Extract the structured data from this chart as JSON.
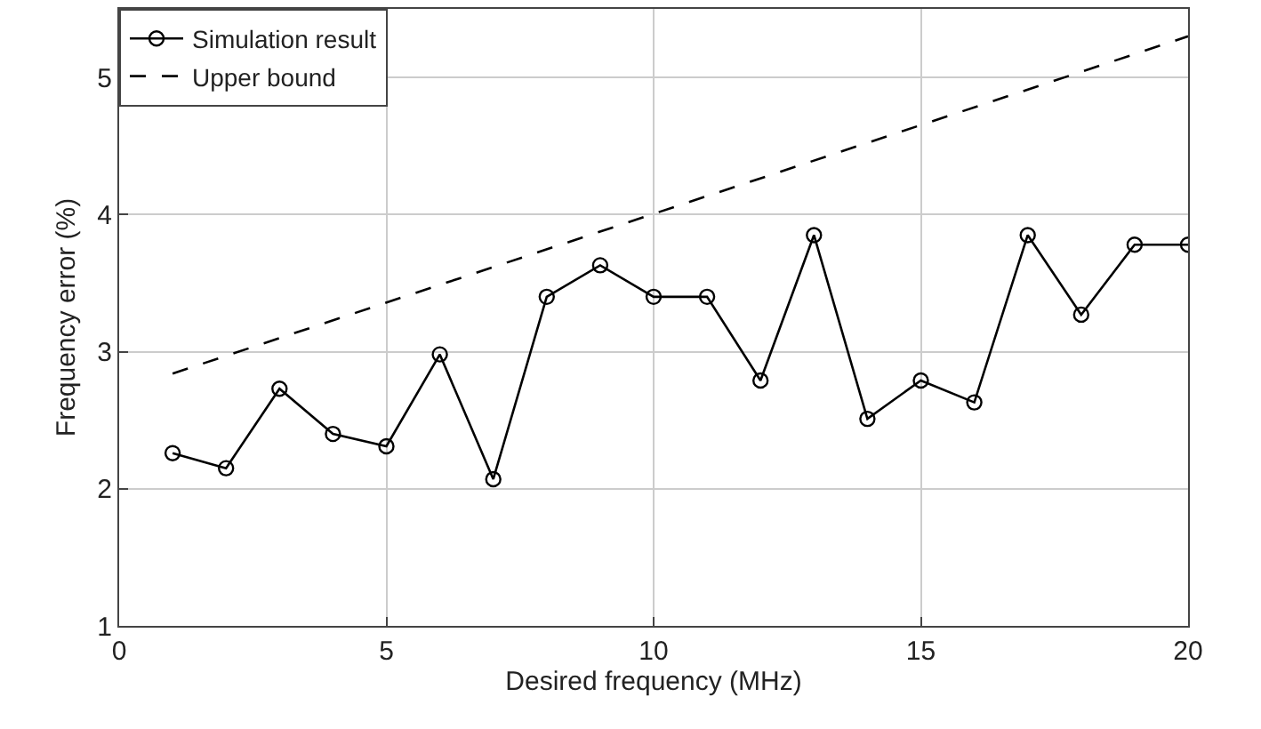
{
  "chart_data": {
    "type": "line",
    "xlabel": "Desired frequency (MHz)",
    "ylabel": "Frequency error (%)",
    "x": [
      1,
      2,
      3,
      4,
      5,
      6,
      7,
      8,
      9,
      10,
      11,
      12,
      13,
      14,
      15,
      16,
      17,
      18,
      19,
      20
    ],
    "series": [
      {
        "name": "Simulation result",
        "color": "#000000",
        "marker": "circle",
        "line_style": "solid",
        "values": [
          2.26,
          2.15,
          2.73,
          2.4,
          2.31,
          2.98,
          2.07,
          3.4,
          3.63,
          3.4,
          3.4,
          2.79,
          3.85,
          2.51,
          2.79,
          2.63,
          3.85,
          3.27,
          3.78,
          3.78
        ]
      },
      {
        "name": "Upper bound",
        "color": "#000000",
        "marker": "none",
        "line_style": "dashed",
        "x": [
          1,
          20
        ],
        "values": [
          2.84,
          5.3
        ]
      }
    ],
    "xlim": [
      0,
      20
    ],
    "xticks": [
      0,
      5,
      10,
      15,
      20
    ],
    "ylim": [
      1,
      5.5
    ],
    "yticks": [
      1,
      2,
      3,
      4,
      5
    ],
    "grid": true,
    "legend": "top left"
  }
}
